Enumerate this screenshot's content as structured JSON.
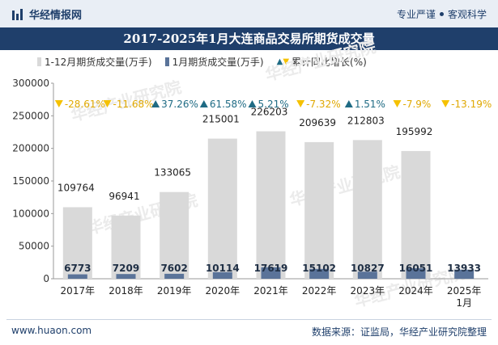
{
  "header": {
    "brand": "华经情报网",
    "tagline_left": "专业严谨",
    "tagline_right": "客观科学"
  },
  "title": "2017-2025年1月大连商品交易所期货成交量",
  "legend": {
    "total": "1-12月期货成交量(万手)",
    "month": "1月期货成交量(万手)",
    "growth": "累计同比增长(%)"
  },
  "watermark": "华经产业研究院",
  "footer": {
    "left": "www.huaon.com",
    "right": "数据来源：证监局，华经产业研究院整理"
  },
  "colors": {
    "total_bar": "#d9d9d9",
    "month_bar": "#5a7399",
    "up_arrow": "#1f6b84",
    "down_arrow": "#f5c100",
    "title_bg": "#1f3f6b"
  },
  "chart_data": {
    "type": "bar",
    "categories": [
      "2017年",
      "2018年",
      "2019年",
      "2020年",
      "2021年",
      "2022年",
      "2023年",
      "2024年",
      "2025年\n1月"
    ],
    "series": [
      {
        "name": "1-12月期货成交量(万手)",
        "values": [
          109764,
          96941,
          133065,
          215001,
          226203,
          209639,
          212803,
          195992,
          null
        ]
      },
      {
        "name": "1月期货成交量(万手)",
        "values": [
          6773,
          7209,
          7602,
          10114,
          17619,
          15102,
          10827,
          16051,
          13933
        ]
      }
    ],
    "growth": {
      "name": "累计同比增长(%)",
      "values": [
        "-28.61%",
        "-11.68%",
        "37.26%",
        "61.58%",
        "5.21%",
        "-7.32%",
        "1.51%",
        "-7.9%",
        "-13.19%"
      ],
      "direction": [
        "down",
        "down",
        "up",
        "up",
        "up",
        "down",
        "up",
        "down",
        "down"
      ]
    },
    "yticks": [
      "0",
      "50000",
      "100000",
      "150000",
      "200000",
      "250000",
      "300000"
    ],
    "ylim": [
      0,
      300000
    ],
    "grid": false,
    "legend_position": "top"
  }
}
